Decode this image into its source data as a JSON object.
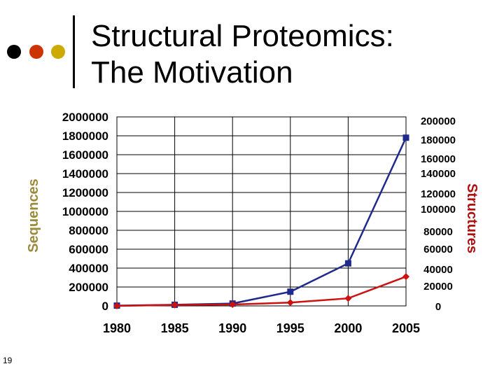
{
  "slide": {
    "title_line1": "Structural Proteomics:",
    "title_line2": "The Motivation",
    "slide_number": "19",
    "bullet_colors": [
      "#000000",
      "#cc3300",
      "#ccaa00"
    ]
  },
  "chart_data": {
    "type": "line",
    "title": "",
    "xlabel": "",
    "ylabel": "Sequences",
    "y2label": "Structures",
    "x_ticks": [
      "1980",
      "1985",
      "1990",
      "1995",
      "2000",
      "2005"
    ],
    "x_range": [
      1980,
      2005
    ],
    "ylim": [
      0,
      2000000
    ],
    "y_ticks": [
      "2000000",
      "1800000",
      "1600000",
      "1400000",
      "1200000",
      "1000000",
      "800000",
      "600000",
      "400000",
      "200000",
      "0"
    ],
    "y2_ticks": [
      "200000",
      "180000",
      "160000",
      "140000",
      "120000",
      "100000",
      "80000",
      "60000",
      "40000",
      "20000",
      "0"
    ],
    "grid": true,
    "series": [
      {
        "name": "Sequences",
        "axis": "left",
        "color": "#1f2a8c",
        "marker": "square",
        "x": [
          1980,
          1985,
          1990,
          1995,
          2000,
          2005
        ],
        "values": [
          3000,
          12000,
          25000,
          150000,
          450000,
          1780000
        ]
      },
      {
        "name": "Structures",
        "axis": "right",
        "color": "#cc1111",
        "marker": "diamond",
        "x": [
          1980,
          1985,
          1990,
          1995,
          2000,
          2005
        ],
        "values": [
          0,
          1000,
          1500,
          3500,
          8000,
          31000
        ]
      }
    ]
  }
}
